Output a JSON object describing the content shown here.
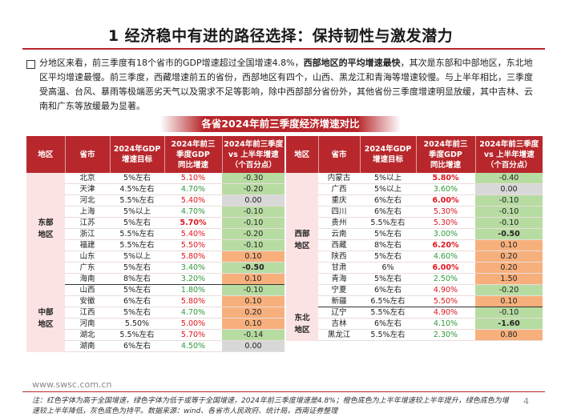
{
  "title": "1 经济稳中有进的路径选择：保持韧性与激发潜力",
  "paragraph": {
    "part1": "分地区来看，前三季度有18个省市的GDP增速超过全国增速4.8%，",
    "part2_bold": "西部地区的平均增速最快",
    "part3": "，其次是东部和中部地区，东北地区平均增速最慢。前三季度，西藏增速前五的省份，西部地区有四个，山西、黑龙江和青海等增速较慢。与上半年相比，三季度受高温、台风、暴雨等极端恶劣天气以及需求不足等影响，除中西部部分省份外，其他省份三季度增速明显放缓，其中吉林、云南和广东等放缓最为显著。"
  },
  "table_title": "各省2024年前三季度经济增速对比",
  "headers": [
    "地区",
    "省市",
    "2024年GDP\n增速目标",
    "2024年前三\n季度GDP\n同比增速",
    "2024年前三季度\nvs 上半年增速\n（个百分点）"
  ],
  "left_regions": [
    {
      "name": "东部\n地区",
      "rows": [
        {
          "province": "北京",
          "target": "5%左右",
          "growth": "5.10%",
          "growth_style": "red",
          "change": "-0.30",
          "change_bg": "green"
        },
        {
          "province": "天津",
          "target": "4.5%左右",
          "growth": "4.70%",
          "growth_style": "green",
          "change": "-0.20",
          "change_bg": "green"
        },
        {
          "province": "河北",
          "target": "5.5%左右",
          "growth": "5.40%",
          "growth_style": "red",
          "change": "0.00",
          "change_bg": "gray"
        },
        {
          "province": "上海",
          "target": "5%以上",
          "growth": "4.70%",
          "growth_style": "green",
          "change": "-0.10",
          "change_bg": "green"
        },
        {
          "province": "江苏",
          "target": "5%左右",
          "growth": "5.70%",
          "growth_style": "redbold",
          "change": "-0.10",
          "change_bg": "green"
        },
        {
          "province": "浙江",
          "target": "5.5%左右",
          "growth": "5.40%",
          "growth_style": "red",
          "change": "-0.20",
          "change_bg": "green"
        },
        {
          "province": "福建",
          "target": "5.5%左右",
          "growth": "5.50%",
          "growth_style": "red",
          "change": "-0.10",
          "change_bg": "green"
        },
        {
          "province": "山东",
          "target": "5%以上",
          "growth": "5.80%",
          "growth_style": "red",
          "change": "0.10",
          "change_bg": "orange"
        },
        {
          "province": "广东",
          "target": "5%左右",
          "growth": "3.40%",
          "growth_style": "green",
          "change": "-0.50",
          "change_bg": "green",
          "change_bold": true
        },
        {
          "province": "海南",
          "target": "8%左右",
          "growth": "3.20%",
          "growth_style": "green",
          "change": "0.10",
          "change_bg": "orange"
        }
      ]
    },
    {
      "name": "中部\n地区",
      "rows": [
        {
          "province": "山西",
          "target": "5%左右",
          "growth": "1.80%",
          "growth_style": "green",
          "change": "-0.10",
          "change_bg": "green"
        },
        {
          "province": "安徽",
          "target": "6%左右",
          "growth": "5.80%",
          "growth_style": "red",
          "change": "0.10",
          "change_bg": "orange"
        },
        {
          "province": "江西",
          "target": "5%左右",
          "growth": "4.70%",
          "growth_style": "green",
          "change": "0.20",
          "change_bg": "orange"
        },
        {
          "province": "河南",
          "target": "5.50%",
          "growth": "5.00%",
          "growth_style": "red",
          "change": "0.10",
          "change_bg": "orange"
        },
        {
          "province": "湖北",
          "target": "5.5%左右",
          "growth": "5.70%",
          "growth_style": "red",
          "change": "-0.14",
          "change_bg": "green"
        },
        {
          "province": "湖南",
          "target": "6%左右",
          "growth": "4.50%",
          "growth_style": "green",
          "change": "0.00",
          "change_bg": "gray"
        }
      ]
    }
  ],
  "right_regions": [
    {
      "name": "西部\n地区",
      "rows": [
        {
          "province": "内蒙古",
          "target": "5%以上",
          "growth": "5.80%",
          "growth_style": "redbold",
          "change": "-0.40",
          "change_bg": "green"
        },
        {
          "province": "广西",
          "target": "5%以上",
          "growth": "3.60%",
          "growth_style": "green",
          "change": "0.00",
          "change_bg": "gray"
        },
        {
          "province": "重庆",
          "target": "6%左右",
          "growth": "6.00%",
          "growth_style": "redbold",
          "change": "-0.10",
          "change_bg": "green"
        },
        {
          "province": "四川",
          "target": "6%左右",
          "growth": "5.30%",
          "growth_style": "red",
          "change": "-0.10",
          "change_bg": "green"
        },
        {
          "province": "贵州",
          "target": "5.5%左右",
          "growth": "5.30%",
          "growth_style": "red",
          "change": "-0.10",
          "change_bg": "green"
        },
        {
          "province": "云南",
          "target": "5%左右",
          "growth": "3.00%",
          "growth_style": "green",
          "change": "-0.50",
          "change_bg": "green",
          "change_bold": true
        },
        {
          "province": "西藏",
          "target": "8%左右",
          "growth": "6.20%",
          "growth_style": "redbold",
          "change": "0.10",
          "change_bg": "orange"
        },
        {
          "province": "陕西",
          "target": "5%左右",
          "growth": "4.60%",
          "growth_style": "green",
          "change": "0.20",
          "change_bg": "orange"
        },
        {
          "province": "甘肃",
          "target": "6%",
          "growth": "6.00%",
          "growth_style": "redbold",
          "change": "0.20",
          "change_bg": "orange"
        },
        {
          "province": "青海",
          "target": "5%左右",
          "growth": "2.50%",
          "growth_style": "green",
          "change": "1.50",
          "change_bg": "orange"
        },
        {
          "province": "宁夏",
          "target": "6%左右",
          "growth": "4.90%",
          "growth_style": "red",
          "change": "-0.20",
          "change_bg": "green"
        },
        {
          "province": "新疆",
          "target": "6.5%左右",
          "growth": "5.50%",
          "growth_style": "red",
          "change": "0.10",
          "change_bg": "orange"
        }
      ]
    },
    {
      "name": "东北\n地区",
      "rows": [
        {
          "province": "辽宁",
          "target": "5.5%左右",
          "growth": "4.90%",
          "growth_style": "red",
          "change": "-0.10",
          "change_bg": "green"
        },
        {
          "province": "吉林",
          "target": "6%左右",
          "growth": "4.10%",
          "growth_style": "green",
          "change": "-1.60",
          "change_bg": "green",
          "change_bold": true
        },
        {
          "province": "黑龙江",
          "target": "5.5%左右",
          "growth": "2.30%",
          "growth_style": "green",
          "change": "0.80",
          "change_bg": "orange"
        }
      ]
    }
  ],
  "footer_url": "www.swsc.com.cn",
  "page_number": "4",
  "note": "注：红色字体为高于全国增速，绿色字体为低于或等于全国增速，2024年前三季度增速是4.8%；橙色底色为上半年增速较上半年提升，绿色底色为增速较上半年降低，灰色底色为持平。数据来源：wind、各省市人民政府、统计局，西南证券整理",
  "colors": {
    "accent": "#b8272c",
    "red_text": "#e0141e",
    "green_text": "#2f9a3c",
    "orange_bg": "#f7b07c",
    "green_bg": "#b7dca2",
    "gray_bg": "#d8d8d8"
  }
}
